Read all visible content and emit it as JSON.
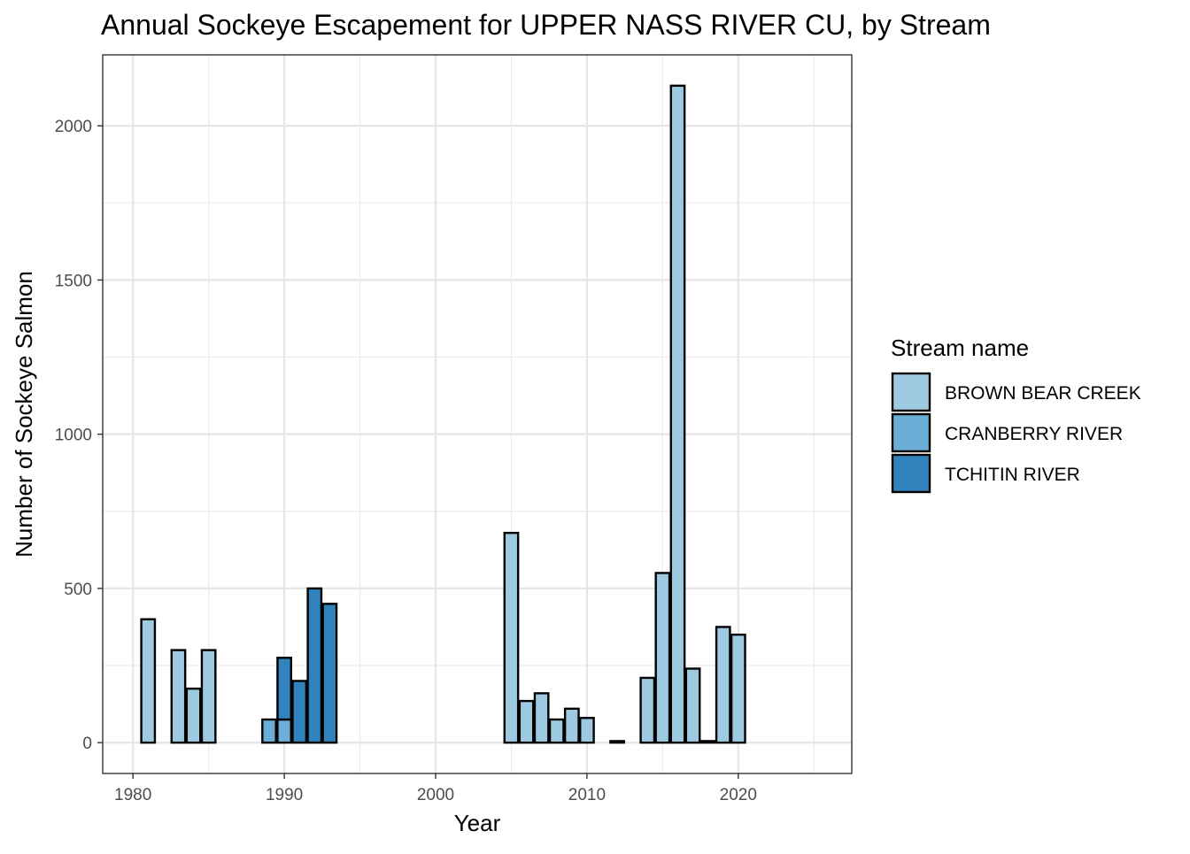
{
  "chart_data": {
    "type": "bar",
    "stacked": true,
    "title": "Annual Sockeye Escapement for UPPER NASS RIVER CU, by Stream",
    "xlabel": "Year",
    "ylabel": "Number of Sockeye Salmon",
    "xlim": [
      1978,
      2027.5
    ],
    "ylim": [
      -100,
      2230
    ],
    "x_ticks": [
      1980,
      1990,
      2000,
      2010,
      2020
    ],
    "y_ticks": [
      0,
      500,
      1000,
      1500,
      2000
    ],
    "grid": true,
    "legend": {
      "title": "Stream name",
      "position": "right"
    },
    "series": [
      {
        "name": "BROWN BEAR CREEK",
        "color": "#9ecae1",
        "points": [
          {
            "year": 1981,
            "value": 400
          },
          {
            "year": 1983,
            "value": 300
          },
          {
            "year": 1984,
            "value": 175
          },
          {
            "year": 1985,
            "value": 300
          },
          {
            "year": 2005,
            "value": 680
          },
          {
            "year": 2006,
            "value": 135
          },
          {
            "year": 2007,
            "value": 160
          },
          {
            "year": 2008,
            "value": 75
          },
          {
            "year": 2009,
            "value": 110
          },
          {
            "year": 2010,
            "value": 80
          },
          {
            "year": 2012,
            "value": 5
          },
          {
            "year": 2014,
            "value": 210
          },
          {
            "year": 2015,
            "value": 550
          },
          {
            "year": 2016,
            "value": 2130
          },
          {
            "year": 2017,
            "value": 240
          },
          {
            "year": 2018,
            "value": 5
          },
          {
            "year": 2019,
            "value": 375
          },
          {
            "year": 2020,
            "value": 350
          }
        ]
      },
      {
        "name": "CRANBERRY RIVER",
        "color": "#6baed6",
        "points": [
          {
            "year": 1989,
            "value": 75
          },
          {
            "year": 1990,
            "value": 75
          }
        ]
      },
      {
        "name": "TCHITIN RIVER",
        "color": "#3182bd",
        "points": [
          {
            "year": 1990,
            "value": 200
          },
          {
            "year": 1991,
            "value": 200
          },
          {
            "year": 1992,
            "value": 500
          },
          {
            "year": 1993,
            "value": 450
          }
        ]
      }
    ]
  }
}
